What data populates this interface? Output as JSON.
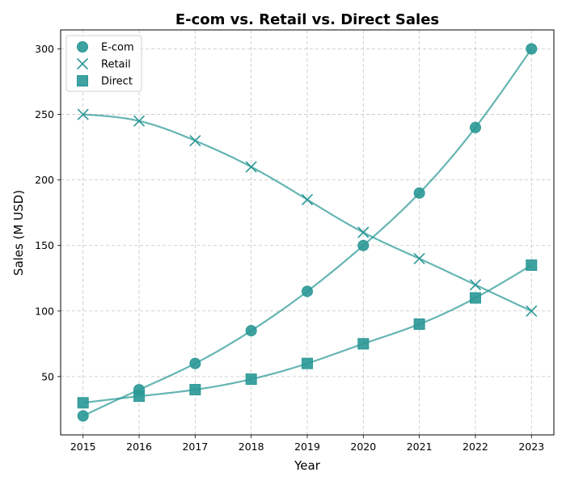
{
  "chart_data": {
    "type": "line",
    "title": "E-com vs. Retail vs. Direct Sales",
    "xlabel": "Year",
    "ylabel": "Sales (M USD)",
    "x": [
      2015,
      2016,
      2017,
      2018,
      2019,
      2020,
      2021,
      2022,
      2023
    ],
    "x_ticks": [
      2015,
      2016,
      2017,
      2018,
      2019,
      2020,
      2021,
      2022,
      2023
    ],
    "y_ticks": [
      50,
      100,
      150,
      200,
      250,
      300
    ],
    "xlim": [
      2014.6,
      2023.4
    ],
    "ylim": [
      5.5,
      314.5
    ],
    "grid": true,
    "legend_position": "top-left",
    "color": "#2a9896",
    "series": [
      {
        "name": "E-com",
        "marker": "circle",
        "values": [
          20,
          40,
          60,
          85,
          115,
          150,
          190,
          240,
          300
        ]
      },
      {
        "name": "Retail",
        "marker": "x",
        "values": [
          250,
          245,
          230,
          210,
          185,
          160,
          140,
          120,
          100
        ]
      },
      {
        "name": "Direct",
        "marker": "square",
        "values": [
          30,
          35,
          40,
          48,
          60,
          75,
          90,
          110,
          135
        ]
      }
    ]
  }
}
